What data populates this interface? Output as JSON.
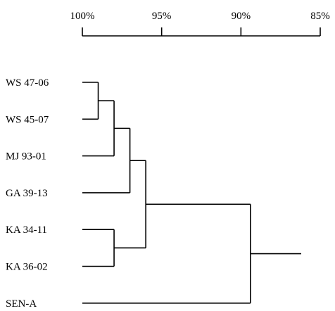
{
  "scale": {
    "ticks": [
      {
        "label": "100%",
        "value": 100
      },
      {
        "label": "95%",
        "value": 95
      },
      {
        "label": "90%",
        "value": 90
      },
      {
        "label": "85%",
        "value": 85
      }
    ]
  },
  "leaves": [
    {
      "label": "WS 47-06"
    },
    {
      "label": "WS 45-07"
    },
    {
      "label": "MJ 93-01"
    },
    {
      "label": "GA 39-13"
    },
    {
      "label": "KA 34-11"
    },
    {
      "label": "KA 36-02"
    },
    {
      "label": "SEN-A"
    }
  ],
  "clusters": [
    {
      "children": [
        "L0",
        "L1"
      ],
      "similarity": 99.0
    },
    {
      "children": [
        "C0",
        "L2"
      ],
      "similarity": 98.0
    },
    {
      "children": [
        "C1",
        "L3"
      ],
      "similarity": 97.0
    },
    {
      "children": [
        "L4",
        "L5"
      ],
      "similarity": 98.0
    },
    {
      "children": [
        "C2",
        "C3"
      ],
      "similarity": 96.0
    },
    {
      "children": [
        "C4",
        "L6"
      ],
      "similarity": 89.4
    }
  ],
  "root_stub_similarity": 86.2,
  "colors": {
    "line": "#000000",
    "text": "#000000",
    "background": "#ffffff"
  }
}
